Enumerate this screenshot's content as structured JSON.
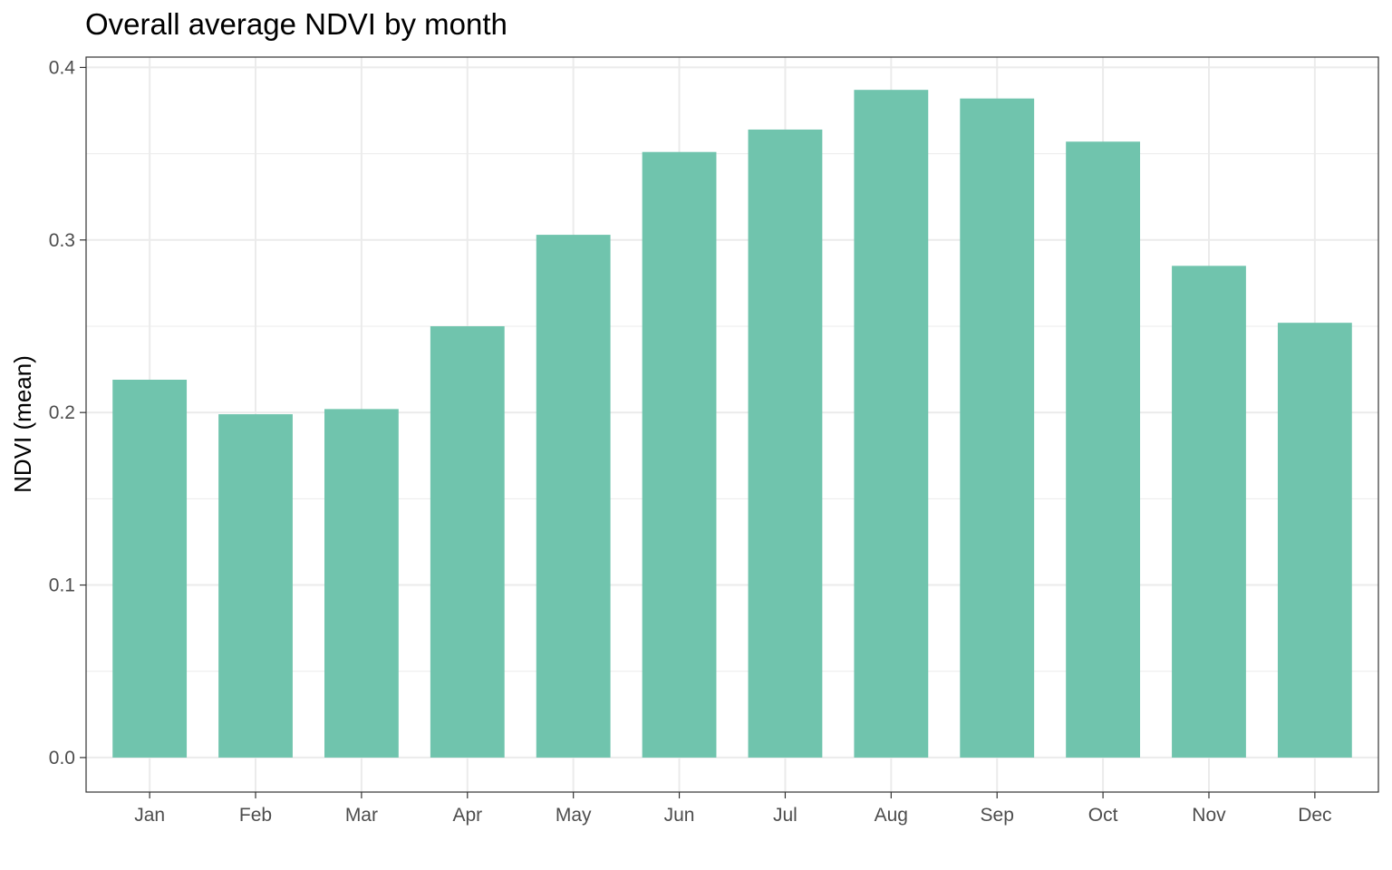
{
  "chart_data": {
    "type": "bar",
    "title": "Overall average NDVI by month",
    "xlabel": "",
    "ylabel": "NDVI (mean)",
    "categories": [
      "Jan",
      "Feb",
      "Mar",
      "Apr",
      "May",
      "Jun",
      "Jul",
      "Aug",
      "Sep",
      "Oct",
      "Nov",
      "Dec"
    ],
    "values": [
      0.219,
      0.199,
      0.202,
      0.25,
      0.303,
      0.351,
      0.364,
      0.387,
      0.382,
      0.357,
      0.285,
      0.252
    ],
    "ylim": [
      -0.02,
      0.406
    ],
    "yticks": [
      "0.0",
      "0.1",
      "0.2",
      "0.3",
      "0.4"
    ],
    "grid": true,
    "legend": "none",
    "colors": {
      "bar": "#70c4ad",
      "grid": "#ebebeb",
      "panel_border": "#333333"
    }
  }
}
